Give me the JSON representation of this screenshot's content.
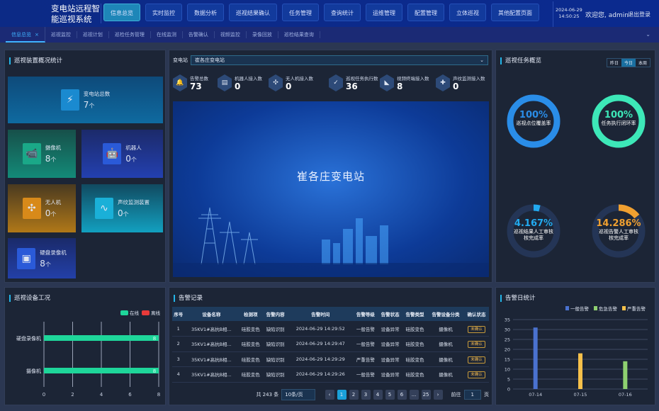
{
  "header": {
    "title": "变电站远程智能巡视系统",
    "nav": [
      "信息总览",
      "实时监控",
      "数据分析",
      "巡视结果确认",
      "任务管理",
      "查询统计",
      "运维管理",
      "配置管理",
      "立体巡视",
      "其他配置页面"
    ],
    "active_nav": 0,
    "date": "2024-06-29",
    "time": "14:50:25",
    "welcome": "欢迎您, admin",
    "logout": "退出登录"
  },
  "tabs": {
    "items": [
      "信息总览",
      "巡视监控",
      "巡视计划",
      "巡检任务管理",
      "在线监测",
      "告警确认",
      "视频监控",
      "录像回放",
      "巡检结果查询"
    ],
    "close": "×",
    "active": 0
  },
  "device_overview": {
    "title": "巡视装置概况统计",
    "cards": [
      {
        "label": "变电站总数",
        "value": "7",
        "unit": "个",
        "icon": "substation-icon",
        "color": "#1a8ad0"
      },
      {
        "label": "摄像机",
        "value": "8",
        "unit": "个",
        "icon": "camera-icon",
        "color": "#1aa888"
      },
      {
        "label": "机器人",
        "value": "0",
        "unit": "个",
        "icon": "robot-icon",
        "color": "#2a5ad8"
      },
      {
        "label": "无人机",
        "value": "0",
        "unit": "个",
        "icon": "drone-icon",
        "color": "#d88a1a"
      },
      {
        "label": "声纹监测装置",
        "value": "0",
        "unit": "个",
        "icon": "voiceprint-icon",
        "color": "#1ab0d8"
      },
      {
        "label": "硬盘录像机",
        "value": "8",
        "unit": "个",
        "icon": "nvr-icon",
        "color": "#2a5ad8"
      }
    ]
  },
  "center": {
    "station_label": "变电站",
    "station_value": "崔各庄变电站",
    "hero_title": "崔各庄变电站",
    "stats": [
      {
        "label": "告警总数",
        "value": "73",
        "icon": "alarm-icon"
      },
      {
        "label": "机器人接入数",
        "value": "0",
        "icon": "robot-icon"
      },
      {
        "label": "无人机接入数",
        "value": "0",
        "icon": "drone-icon"
      },
      {
        "label": "巡视任务执行数",
        "value": "36",
        "icon": "clipboard-icon"
      },
      {
        "label": "视频终端接入数",
        "value": "8",
        "icon": "camera-icon"
      },
      {
        "label": "声纹监测接入数",
        "value": "0",
        "icon": "voiceprint-icon"
      }
    ]
  },
  "task_overview": {
    "title": "巡视任务概览",
    "periods": [
      "昨日",
      "今日",
      "本周"
    ],
    "active_period": 1,
    "gauges": [
      {
        "percent": "100%",
        "value": 100,
        "label": "巡视点位覆盖率",
        "color": "#2a8de8"
      },
      {
        "percent": "100%",
        "value": 100,
        "label": "任务执行闭环率",
        "color": "#3de8b8"
      },
      {
        "percent": "4.167%",
        "value": 4.167,
        "label": "巡视结果人工审核核完成率",
        "color": "#22aaf0"
      },
      {
        "percent": "14.286%",
        "value": 14.286,
        "label": "巡视告警人工审核核完成率",
        "color": "#f0a030"
      }
    ]
  },
  "alarm_records": {
    "title": "告警记录",
    "columns": [
      "序号",
      "设备名称",
      "检测项",
      "告警内容",
      "告警时间",
      "告警等级",
      "告警状态",
      "告警类型",
      "告警设备分类",
      "确认状态"
    ],
    "rows": [
      [
        "1",
        "35KV1#高抗B相...",
        "硅胶变色",
        "缺陷识别",
        "2024-06-29 14:29:52",
        "一般告警",
        "设备异常",
        "硅胶变色",
        "摄像机",
        "未确认"
      ],
      [
        "2",
        "35KV1#高抗B相...",
        "硅胶变色",
        "缺陷识别",
        "2024-06-29 14:29:47",
        "一般告警",
        "设备异常",
        "硅胶变色",
        "摄像机",
        "未确认"
      ],
      [
        "3",
        "35KV1#高抗B相...",
        "硅胶变色",
        "缺陷识别",
        "2024-06-29 14:29:29",
        "严重告警",
        "设备异常",
        "硅胶变色",
        "摄像机",
        "未确认"
      ],
      [
        "4",
        "35KV1#高抗B相...",
        "硅胶变色",
        "缺陷识别",
        "2024-06-29 14:29:26",
        "一般告警",
        "设备异常",
        "硅胶变色",
        "摄像机",
        "未确认"
      ]
    ],
    "pagination": {
      "total": "共 243 条",
      "page_size": "10条/页",
      "pages": [
        "1",
        "2",
        "3",
        "4",
        "5",
        "6",
        "...",
        "25"
      ],
      "current": "1",
      "goto_label": "前往",
      "goto_value": "1",
      "page_unit": "页",
      "prev": "‹",
      "next": "›"
    }
  },
  "chart_data": [
    {
      "type": "bar",
      "orientation": "horizontal",
      "title": "巡视设备工况",
      "categories": [
        "硬盘录像机",
        "摄像机"
      ],
      "series": [
        {
          "name": "在线",
          "values": [
            8,
            8
          ],
          "color": "#1ed69a"
        },
        {
          "name": "离线",
          "values": [
            0,
            0
          ],
          "color": "#e83a3a"
        }
      ],
      "xlim": [
        0,
        8
      ],
      "xticks": [
        "0",
        "2",
        "4",
        "6",
        "8"
      ],
      "legend": "top-right",
      "grid": true
    },
    {
      "type": "bar",
      "title": "告警日统计",
      "categories": [
        "07-14",
        "07-15",
        "07-16"
      ],
      "series": [
        {
          "name": "一般告警",
          "values": [
            31,
            0,
            0
          ],
          "color": "#4a72d0"
        },
        {
          "name": "危急告警",
          "values": [
            0,
            0,
            14
          ],
          "color": "#8ed070"
        },
        {
          "name": "严重告警",
          "values": [
            0,
            18,
            0
          ],
          "color": "#f5c04a"
        }
      ],
      "ylim": [
        0,
        35
      ],
      "yticks": [
        "0",
        "5",
        "10",
        "15",
        "20",
        "25",
        "30",
        "35"
      ],
      "legend": "top-right",
      "grid": true
    }
  ]
}
